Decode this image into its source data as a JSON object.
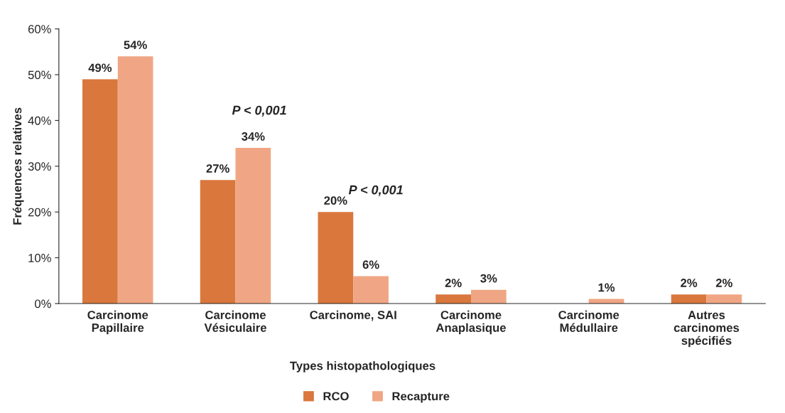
{
  "chart_data": {
    "type": "bar",
    "xlabel": "Types histopathologiques",
    "ylabel": "Fréquences relatives",
    "categories": [
      "Carcinome\nPapillaire",
      "Carcinome\nVésiculaire",
      "Carcinome, SAI",
      "Carcinome\nAnaplasique",
      "Carcinome\nMédullaire",
      "Autres\ncarcinomes\nspécifiés"
    ],
    "series": [
      {
        "name": "RCO",
        "color": "#d9773c",
        "values": [
          49,
          27,
          20,
          2,
          null,
          2
        ],
        "value_labels": [
          "49%",
          "27%",
          "20%",
          "2%",
          null,
          "2%"
        ]
      },
      {
        "name": "Recapture",
        "color": "#f0a684",
        "values": [
          54,
          34,
          6,
          3,
          1,
          2
        ],
        "value_labels": [
          "54%",
          "34%",
          "6%",
          "3%",
          "1%",
          "2%"
        ]
      }
    ],
    "annotations": [
      "P < 0,001",
      "P < 0,001"
    ],
    "ylim": [
      0,
      60
    ],
    "yticks": [
      {
        "value": 0,
        "label": "0%"
      },
      {
        "value": 10,
        "label": "10%"
      },
      {
        "value": 20,
        "label": "20%"
      },
      {
        "value": 30,
        "label": "30%"
      },
      {
        "value": 40,
        "label": "40%"
      },
      {
        "value": 50,
        "label": "50%"
      },
      {
        "value": 60,
        "label": "60%"
      }
    ],
    "grid": false,
    "legend": "bottom"
  }
}
